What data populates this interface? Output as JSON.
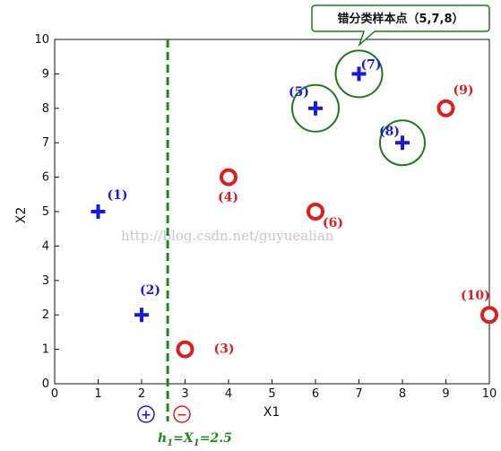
{
  "chart_data": {
    "type": "scatter",
    "title": "",
    "xlabel": "X1",
    "ylabel": "X2",
    "xlim": [
      0,
      10
    ],
    "ylim": [
      0,
      10
    ],
    "xticks": [
      "0",
      "1",
      "2",
      "3",
      "4",
      "5",
      "6",
      "7",
      "8",
      "9",
      "10"
    ],
    "yticks": [
      "0",
      "1",
      "2",
      "3",
      "4",
      "5",
      "6",
      "7",
      "8",
      "9",
      "10"
    ],
    "series": [
      {
        "name": "positive",
        "marker": "plus",
        "color": "#1a1adc",
        "points": [
          {
            "id": "1",
            "label": "(1)",
            "x": 1,
            "y": 5
          },
          {
            "id": "2",
            "label": "(2)",
            "x": 2,
            "y": 2
          },
          {
            "id": "5",
            "label": "(5)",
            "x": 6,
            "y": 8,
            "misclassified": true
          },
          {
            "id": "7",
            "label": "(7)",
            "x": 7,
            "y": 9,
            "misclassified": true
          },
          {
            "id": "8",
            "label": "(8)",
            "x": 8,
            "y": 7,
            "misclassified": true
          }
        ]
      },
      {
        "name": "negative",
        "marker": "circle",
        "color": "#dd1e1e",
        "points": [
          {
            "id": "3",
            "label": "(3)",
            "x": 3,
            "y": 1
          },
          {
            "id": "4",
            "label": "(4)",
            "x": 4,
            "y": 6
          },
          {
            "id": "6",
            "label": "(6)",
            "x": 6,
            "y": 5
          },
          {
            "id": "9",
            "label": "(9)",
            "x": 9,
            "y": 8
          },
          {
            "id": "10",
            "label": "(10)",
            "x": 10,
            "y": 2
          }
        ]
      }
    ],
    "threshold": {
      "x": 2.5,
      "label": "h1=X1=2.5"
    },
    "callout": "错分类样本点（5,7,8）",
    "region_signs": {
      "left": "+",
      "right": "−"
    },
    "watermark": "http://blog.csdn.net/guyuealian"
  },
  "colors": {
    "positive": "#1a1adc",
    "negative": "#dd1e1e",
    "highlight": "#1f7a1f",
    "threshold": "#1a8a1a"
  }
}
